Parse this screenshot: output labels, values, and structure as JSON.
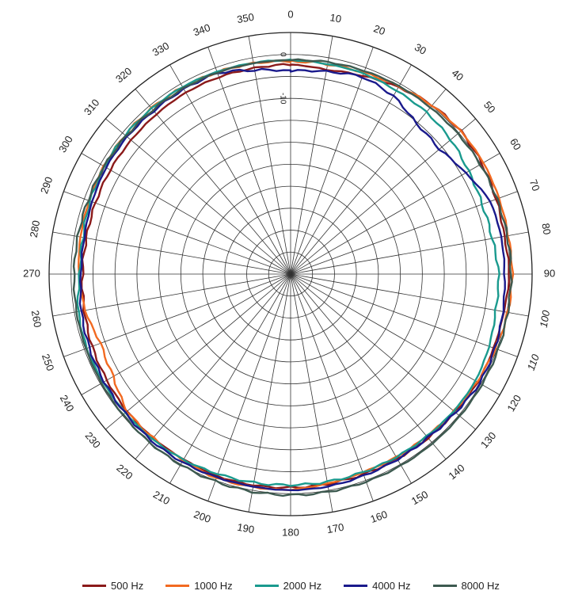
{
  "chart_data": {
    "type": "polar",
    "angle_unit": "degrees",
    "angle_direction": "clockwise",
    "angle_zero": "top",
    "angle_tick_step": 10,
    "angle_tick_labels": [
      "0",
      "10",
      "20",
      "30",
      "40",
      "50",
      "60",
      "70",
      "80",
      "90",
      "100",
      "110",
      "120",
      "130",
      "140",
      "150",
      "160",
      "170",
      "180",
      "190",
      "200",
      "210",
      "220",
      "230",
      "240",
      "250",
      "260",
      "270",
      "280",
      "290",
      "300",
      "310",
      "320",
      "330",
      "340",
      "350"
    ],
    "radial_range": [
      -50,
      5
    ],
    "radial_grid_step": 5,
    "radial_tick_labels": [
      "-10",
      "0"
    ],
    "radial_tick_values": [
      -10,
      0
    ],
    "grid": true,
    "legend_position": "bottom",
    "series": [
      {
        "name": "500 Hz",
        "color": "#8b1a1a",
        "angles": [
          0,
          10,
          20,
          30,
          40,
          50,
          60,
          70,
          80,
          90,
          100,
          110,
          120,
          130,
          140,
          150,
          160,
          170,
          180,
          190,
          200,
          210,
          220,
          230,
          240,
          250,
          260,
          270,
          280,
          290,
          300,
          310,
          320,
          330,
          340,
          350
        ],
        "values": [
          -2.3,
          -2.8,
          -2.0,
          -0.9,
          0.2,
          0.6,
          0.3,
          -0.2,
          -0.6,
          -0.2,
          -0.7,
          -0.8,
          -0.8,
          -1.2,
          -1.3,
          -1.5,
          -1.5,
          -1.5,
          -1.4,
          -1.2,
          -1.1,
          -1.3,
          -1.3,
          -1.4,
          -1.7,
          -1.9,
          -2.3,
          -2.6,
          -2.8,
          -2.7,
          -2.6,
          -2.6,
          -2.5,
          -2.3,
          -2.3,
          -2.4
        ]
      },
      {
        "name": "1000 Hz",
        "color": "#f26a21",
        "angles": [
          0,
          10,
          20,
          30,
          40,
          50,
          60,
          70,
          80,
          90,
          100,
          110,
          120,
          130,
          140,
          150,
          160,
          170,
          180,
          190,
          200,
          210,
          220,
          230,
          240,
          250,
          260,
          270,
          280,
          290,
          300,
          310,
          320,
          330,
          340,
          350
        ],
        "values": [
          -1.6,
          -1.5,
          -1.2,
          -0.7,
          0.1,
          0.6,
          0.7,
          0.5,
          0.3,
          0.5,
          0.2,
          -0.4,
          -1.0,
          -1.4,
          -1.8,
          -1.9,
          -2.0,
          -1.6,
          -0.9,
          -0.8,
          -0.6,
          -1.0,
          -1.3,
          -1.4,
          -3.4,
          -4.0,
          -2.5,
          -1.8,
          -1.4,
          -1.2,
          -0.9,
          -0.8,
          -0.7,
          -0.9,
          -1.1,
          -1.3
        ]
      },
      {
        "name": "2000 Hz",
        "color": "#1a9a8e",
        "angles": [
          0,
          10,
          20,
          30,
          40,
          50,
          60,
          70,
          80,
          90,
          100,
          110,
          120,
          130,
          140,
          150,
          160,
          170,
          180,
          190,
          200,
          210,
          220,
          230,
          240,
          250,
          260,
          270,
          280,
          290,
          300,
          310,
          320,
          330,
          340,
          350
        ],
        "values": [
          -1.3,
          -1.5,
          -1.4,
          -1.8,
          -1.9,
          -2.4,
          -3.2,
          -3.6,
          -3.4,
          -2.6,
          -2.6,
          -1.9,
          -1.4,
          -1.5,
          -1.8,
          -1.9,
          -2.0,
          -2.0,
          -2.0,
          -1.8,
          -1.6,
          -1.2,
          -1.0,
          -0.9,
          -0.7,
          -0.6,
          -0.9,
          -2.0,
          -2.0,
          -1.4,
          -1.1,
          -0.8,
          -0.8,
          -0.8,
          -1.0,
          -1.2
        ]
      },
      {
        "name": "4000 Hz",
        "color": "#1a1a8c",
        "angles": [
          0,
          10,
          20,
          30,
          40,
          50,
          60,
          70,
          80,
          90,
          100,
          110,
          120,
          130,
          140,
          150,
          160,
          170,
          180,
          190,
          200,
          210,
          220,
          230,
          240,
          250,
          260,
          270,
          280,
          290,
          300,
          310,
          320,
          330,
          340,
          350
        ],
        "values": [
          -3.8,
          -3.2,
          -2.2,
          -3.2,
          -5.4,
          -5.8,
          -4.0,
          -1.6,
          -1.3,
          -1.3,
          -0.9,
          -0.5,
          -0.3,
          -1.0,
          -1.4,
          -1.3,
          -1.2,
          -0.9,
          -0.8,
          -0.9,
          -0.8,
          -0.6,
          -0.6,
          -0.8,
          -1.0,
          -1.2,
          -1.6,
          -2.3,
          -2.3,
          -1.9,
          -1.5,
          -1.4,
          -1.5,
          -1.4,
          -1.3,
          -2.9
        ]
      },
      {
        "name": "8000 Hz",
        "color": "#3d5a50",
        "angles": [
          0,
          10,
          20,
          30,
          40,
          50,
          60,
          70,
          80,
          90,
          100,
          110,
          120,
          130,
          140,
          150,
          160,
          170,
          180,
          190,
          200,
          210,
          220,
          230,
          240,
          250,
          260,
          270,
          280,
          290,
          300,
          310,
          320,
          330,
          340,
          350
        ],
        "values": [
          -1.3,
          -1.0,
          -0.8,
          -0.6,
          -0.5,
          -0.3,
          -0.1,
          0.0,
          0.1,
          0.2,
          0.2,
          0.3,
          0.3,
          0.3,
          0.3,
          0.3,
          0.3,
          0.3,
          0.3,
          0.3,
          0.2,
          0.1,
          0.0,
          -0.2,
          -0.3,
          -0.4,
          -0.5,
          -0.7,
          -0.8,
          -0.9,
          -1.0,
          -1.1,
          -1.2,
          -1.2,
          -1.2,
          -1.3
        ]
      }
    ]
  }
}
